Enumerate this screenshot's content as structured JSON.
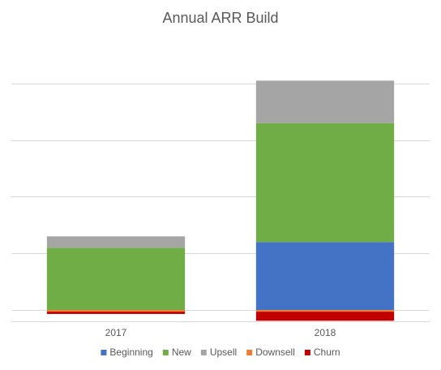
{
  "chart_data": {
    "type": "bar",
    "stacked": true,
    "title": "Annual ARR Build",
    "categories": [
      "2017",
      "2018"
    ],
    "ylim": [
      -2,
      46
    ],
    "grid": true,
    "legend_position": "bottom",
    "series": [
      {
        "name": "Beginning",
        "color": "#4472C4",
        "values": [
          0,
          12
        ]
      },
      {
        "name": "New",
        "color": "#70AD47",
        "values": [
          11,
          21
        ]
      },
      {
        "name": "Upsell",
        "color": "#A5A5A5",
        "values": [
          2,
          7.5
        ]
      },
      {
        "name": "Downsell",
        "color": "#ED7D31",
        "values": [
          -0.3,
          -0.3
        ]
      },
      {
        "name": "Churn",
        "color": "#C00000",
        "values": [
          -0.4,
          -1.6
        ]
      }
    ]
  }
}
